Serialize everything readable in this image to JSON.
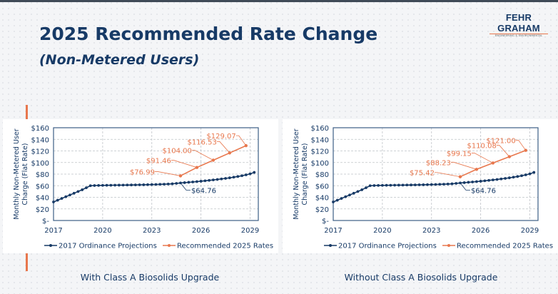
{
  "header": {
    "title": "2025 Recommended Rate Change",
    "subtitle": "(Non-Metered Users)"
  },
  "logo": {
    "name": "FEHR GRAHAM",
    "tagline": "ENGINEERING & ENVIRONMENTAL"
  },
  "colors": {
    "navy": "#173a66",
    "orange": "#e8774d"
  },
  "chart_data": [
    {
      "type": "line",
      "caption": "With Class A Biosolids Upgrade",
      "ylabel": "Monthly Non-Metered User Charge (Flat Rate)",
      "xlabel": "",
      "ylim": [
        0,
        160
      ],
      "xlim": [
        2017,
        2029.5
      ],
      "y_ticks": [
        "$-",
        "$20",
        "$40",
        "$60",
        "$80",
        "$100",
        "$120",
        "$140",
        "$160"
      ],
      "y_tick_values": [
        0,
        20,
        40,
        60,
        80,
        100,
        120,
        140,
        160
      ],
      "x_ticks": [
        "2017",
        "2020",
        "2023",
        "2026",
        "2029"
      ],
      "x_tick_values": [
        2017,
        2020,
        2023,
        2026,
        2029
      ],
      "grid": true,
      "legend": "bottom",
      "series": [
        {
          "name": "2017 Ordinance Projections",
          "color": "#173a66",
          "anchor": {
            "x": 2019.25,
            "y": 60
          },
          "annotations": [
            {
              "x": 2024.75,
              "y": 64.76,
              "label": "$64.76"
            }
          ],
          "points": [
            [
              2017,
              32
            ],
            [
              2017.25,
              35
            ],
            [
              2017.5,
              38
            ],
            [
              2017.75,
              41
            ],
            [
              2018,
              44
            ],
            [
              2018.25,
              47
            ],
            [
              2018.5,
              50
            ],
            [
              2018.75,
              53
            ],
            [
              2019,
              56.5
            ],
            [
              2019.25,
              60
            ],
            [
              2019.5,
              60.3
            ],
            [
              2019.75,
              60.5
            ],
            [
              2020,
              60.6
            ],
            [
              2020.25,
              60.7
            ],
            [
              2020.5,
              60.8
            ],
            [
              2020.75,
              60.9
            ],
            [
              2021,
              61
            ],
            [
              2021.25,
              61.1
            ],
            [
              2021.5,
              61.2
            ],
            [
              2021.75,
              61.3
            ],
            [
              2022,
              61.4
            ],
            [
              2022.25,
              61.5
            ],
            [
              2022.5,
              61.6
            ],
            [
              2022.75,
              61.8
            ],
            [
              2023,
              62
            ],
            [
              2023.25,
              62.2
            ],
            [
              2023.5,
              62.4
            ],
            [
              2023.75,
              62.6
            ],
            [
              2024,
              62.9
            ],
            [
              2024.25,
              63.3
            ],
            [
              2024.5,
              64
            ],
            [
              2024.75,
              64.76
            ],
            [
              2025,
              65.3
            ],
            [
              2025.25,
              65.9
            ],
            [
              2025.5,
              66.5
            ],
            [
              2025.75,
              67.1
            ],
            [
              2026,
              67.8
            ],
            [
              2026.25,
              68.5
            ],
            [
              2026.5,
              69.2
            ],
            [
              2026.75,
              70
            ],
            [
              2027,
              70.8
            ],
            [
              2027.25,
              71.7
            ],
            [
              2027.5,
              72.6
            ],
            [
              2027.75,
              73.6
            ],
            [
              2028,
              74.7
            ],
            [
              2028.25,
              75.9
            ],
            [
              2028.5,
              77.2
            ],
            [
              2028.75,
              78.7
            ],
            [
              2029,
              80.5
            ],
            [
              2029.25,
              83
            ]
          ]
        },
        {
          "name": "Recommended 2025 Rates",
          "color": "#e8774d",
          "points": [
            [
              2024.75,
              76.99
            ],
            [
              2025.75,
              91.46
            ],
            [
              2026.75,
              104.0
            ],
            [
              2027.75,
              116.53
            ],
            [
              2028.75,
              129.07
            ]
          ],
          "labels": [
            "$76.99",
            "$91.46",
            "$104.00",
            "$116.53",
            "$129.07"
          ]
        }
      ]
    },
    {
      "type": "line",
      "caption": "Without Class A Biosolids Upgrade",
      "ylabel": "Monthly Non-Metered User Charge (Flat Rate)",
      "xlabel": "",
      "ylim": [
        0,
        160
      ],
      "xlim": [
        2017,
        2029.5
      ],
      "y_ticks": [
        "$-",
        "$20",
        "$40",
        "$60",
        "$80",
        "$100",
        "$120",
        "$140",
        "$160"
      ],
      "y_tick_values": [
        0,
        20,
        40,
        60,
        80,
        100,
        120,
        140,
        160
      ],
      "x_ticks": [
        "2017",
        "2020",
        "2023",
        "2026",
        "2029"
      ],
      "x_tick_values": [
        2017,
        2020,
        2023,
        2026,
        2029
      ],
      "grid": true,
      "legend": "bottom",
      "series": [
        {
          "name": "2017 Ordinance Projections",
          "color": "#173a66",
          "annotations": [
            {
              "x": 2024.75,
              "y": 64.76,
              "label": "$64.76"
            }
          ],
          "points": [
            [
              2017,
              32
            ],
            [
              2017.25,
              35
            ],
            [
              2017.5,
              38
            ],
            [
              2017.75,
              41
            ],
            [
              2018,
              44
            ],
            [
              2018.25,
              47
            ],
            [
              2018.5,
              50
            ],
            [
              2018.75,
              53
            ],
            [
              2019,
              56.5
            ],
            [
              2019.25,
              60
            ],
            [
              2019.5,
              60.3
            ],
            [
              2019.75,
              60.5
            ],
            [
              2020,
              60.6
            ],
            [
              2020.25,
              60.7
            ],
            [
              2020.5,
              60.8
            ],
            [
              2020.75,
              60.9
            ],
            [
              2021,
              61
            ],
            [
              2021.25,
              61.1
            ],
            [
              2021.5,
              61.2
            ],
            [
              2021.75,
              61.3
            ],
            [
              2022,
              61.4
            ],
            [
              2022.25,
              61.5
            ],
            [
              2022.5,
              61.6
            ],
            [
              2022.75,
              61.8
            ],
            [
              2023,
              62
            ],
            [
              2023.25,
              62.2
            ],
            [
              2023.5,
              62.4
            ],
            [
              2023.75,
              62.6
            ],
            [
              2024,
              62.9
            ],
            [
              2024.25,
              63.3
            ],
            [
              2024.5,
              64
            ],
            [
              2024.75,
              64.76
            ],
            [
              2025,
              65.3
            ],
            [
              2025.25,
              65.9
            ],
            [
              2025.5,
              66.5
            ],
            [
              2025.75,
              67.1
            ],
            [
              2026,
              67.8
            ],
            [
              2026.25,
              68.5
            ],
            [
              2026.5,
              69.2
            ],
            [
              2026.75,
              70
            ],
            [
              2027,
              70.8
            ],
            [
              2027.25,
              71.7
            ],
            [
              2027.5,
              72.6
            ],
            [
              2027.75,
              73.6
            ],
            [
              2028,
              74.7
            ],
            [
              2028.25,
              75.9
            ],
            [
              2028.5,
              77.2
            ],
            [
              2028.75,
              78.7
            ],
            [
              2029,
              80.5
            ],
            [
              2029.25,
              83
            ]
          ]
        },
        {
          "name": "Recommended 2025 Rates",
          "color": "#e8774d",
          "points": [
            [
              2024.75,
              75.42
            ],
            [
              2025.75,
              88.23
            ],
            [
              2026.75,
              99.15
            ],
            [
              2027.75,
              110.08
            ],
            [
              2028.75,
              121.0
            ]
          ],
          "labels": [
            "$75.42",
            "$88.23",
            "$99.15",
            "$110.08",
            "$121.00"
          ]
        }
      ]
    }
  ]
}
